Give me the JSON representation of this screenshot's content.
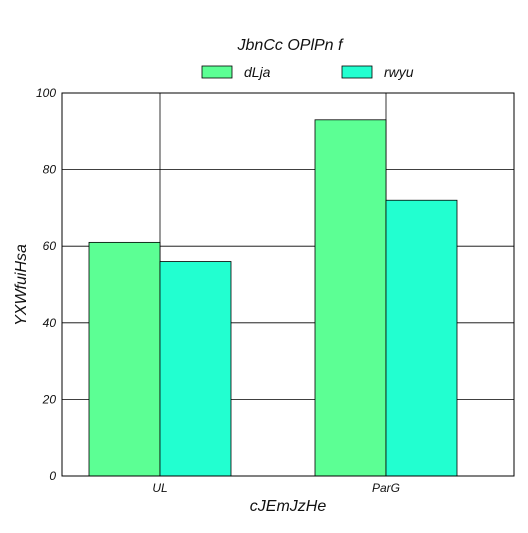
{
  "chart_data": {
    "type": "bar",
    "title": "JbnCc OPlPn f",
    "xlabel": "cJEmJzHe",
    "ylabel": "YXWfuiHsa",
    "categories": [
      "UL",
      "ParG"
    ],
    "series": [
      {
        "name": "dLja",
        "values": [
          61,
          93
        ],
        "color": "#5cff94"
      },
      {
        "name": "rwyu",
        "values": [
          56,
          72
        ],
        "color": "#22ffd0"
      }
    ],
    "ylim": [
      0,
      100
    ],
    "yticks": [
      0,
      20,
      40,
      60,
      80,
      100
    ],
    "grid": true,
    "legend_position": "top-center"
  }
}
